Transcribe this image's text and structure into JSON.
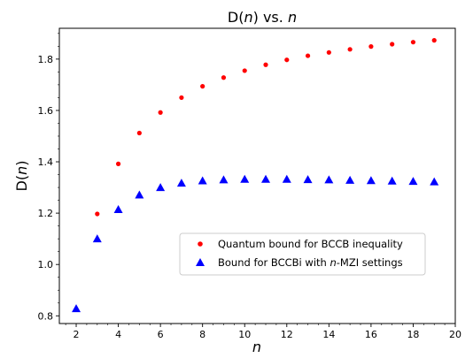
{
  "chart_data": {
    "type": "scatter",
    "title": "D(n) vs. n",
    "title_parts": [
      "D(",
      "n",
      ") vs. ",
      "n"
    ],
    "xlabel": "n",
    "ylabel": "D(n)",
    "ylabel_parts": [
      "D(",
      "n",
      ")"
    ],
    "xlim": [
      1.2,
      20
    ],
    "ylim": [
      0.77,
      1.92
    ],
    "xticks": [
      2,
      4,
      6,
      8,
      10,
      12,
      14,
      16,
      18,
      20
    ],
    "yticks": [
      0.8,
      1.0,
      1.2,
      1.4,
      1.6,
      1.8
    ],
    "xtick_labels": [
      "2",
      "4",
      "6",
      "8",
      "10",
      "12",
      "14",
      "16",
      "18",
      "20"
    ],
    "ytick_labels": [
      "0.8",
      "1.0",
      "1.2",
      "1.4",
      "1.6",
      "1.8"
    ],
    "grid": false,
    "legend_position": "center-right",
    "series": [
      {
        "name": "Quantum bound for BCCB inequality",
        "marker": "circle",
        "color": "#ff0000",
        "x": [
          3,
          4,
          5,
          6,
          7,
          8,
          9,
          10,
          11,
          12,
          13,
          14,
          15,
          16,
          17,
          18,
          19
        ],
        "y": [
          1.197,
          1.392,
          1.512,
          1.592,
          1.65,
          1.694,
          1.728,
          1.755,
          1.778,
          1.797,
          1.813,
          1.826,
          1.838,
          1.849,
          1.858,
          1.866,
          1.873
        ]
      },
      {
        "name": "Bound for BCCBi with n-MZI settings",
        "name_parts": [
          "Bound for BCCBi with ",
          "n",
          "-MZI settings"
        ],
        "marker": "triangle",
        "color": "#0000ff",
        "x": [
          2,
          3,
          4,
          5,
          6,
          7,
          8,
          9,
          10,
          11,
          12,
          13,
          14,
          15,
          16,
          17,
          18,
          19
        ],
        "y": [
          0.828,
          1.1,
          1.214,
          1.271,
          1.3,
          1.317,
          1.326,
          1.33,
          1.332,
          1.332,
          1.332,
          1.331,
          1.33,
          1.328,
          1.327,
          1.325,
          1.324,
          1.322
        ]
      }
    ]
  }
}
